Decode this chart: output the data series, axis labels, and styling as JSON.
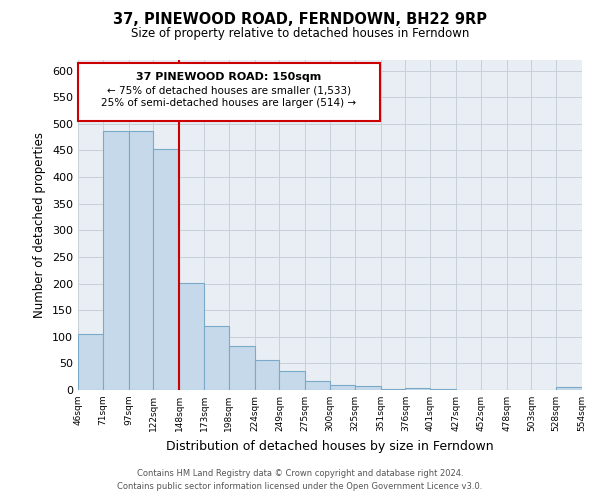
{
  "title": "37, PINEWOOD ROAD, FERNDOWN, BH22 9RP",
  "subtitle": "Size of property relative to detached houses in Ferndown",
  "xlabel": "Distribution of detached houses by size in Ferndown",
  "ylabel": "Number of detached properties",
  "bar_edges": [
    46,
    71,
    97,
    122,
    148,
    173,
    198,
    224,
    249,
    275,
    300,
    325,
    351,
    376,
    401,
    427,
    452,
    478,
    503,
    528,
    554
  ],
  "bar_heights": [
    105,
    487,
    487,
    452,
    201,
    121,
    82,
    56,
    36,
    16,
    10,
    8,
    1,
    3,
    1,
    0,
    0,
    0,
    0,
    5
  ],
  "bar_color": "#c6d9ea",
  "bar_edgecolor": "#7aaac8",
  "property_line_x": 148,
  "property_line_color": "#cc0000",
  "ylim": [
    0,
    620
  ],
  "yticks": [
    0,
    50,
    100,
    150,
    200,
    250,
    300,
    350,
    400,
    450,
    500,
    550,
    600
  ],
  "annotation_title": "37 PINEWOOD ROAD: 150sqm",
  "annotation_line1": "← 75% of detached houses are smaller (1,533)",
  "annotation_line2": "25% of semi-detached houses are larger (514) →",
  "footnote1": "Contains HM Land Registry data © Crown copyright and database right 2024.",
  "footnote2": "Contains public sector information licensed under the Open Government Licence v3.0.",
  "tick_labels": [
    "46sqm",
    "71sqm",
    "97sqm",
    "122sqm",
    "148sqm",
    "173sqm",
    "198sqm",
    "224sqm",
    "249sqm",
    "275sqm",
    "300sqm",
    "325sqm",
    "351sqm",
    "376sqm",
    "401sqm",
    "427sqm",
    "452sqm",
    "478sqm",
    "503sqm",
    "528sqm",
    "554sqm"
  ],
  "background_color": "#ffffff",
  "grid_color": "#c8d0d8"
}
